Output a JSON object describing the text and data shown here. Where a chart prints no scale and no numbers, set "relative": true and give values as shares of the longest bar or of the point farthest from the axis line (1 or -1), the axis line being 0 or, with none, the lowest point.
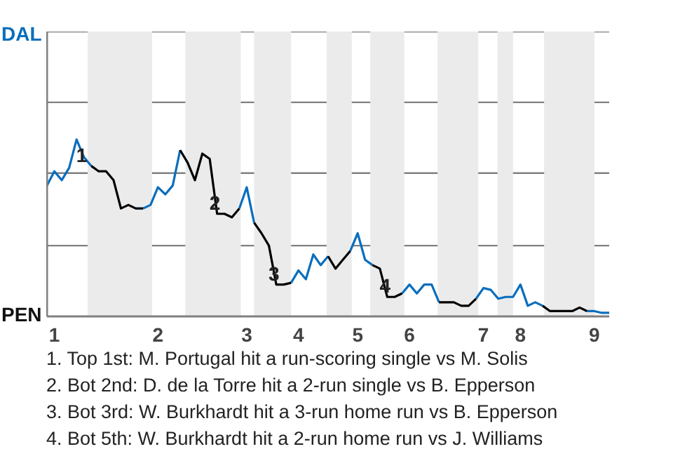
{
  "chart_data": {
    "type": "line",
    "categories": [
      null,
      "1",
      null,
      null,
      null,
      null,
      null,
      null,
      null,
      null,
      null,
      null,
      null,
      null,
      null,
      "2",
      null,
      null,
      null,
      null,
      null,
      null,
      null,
      null,
      null,
      null,
      null,
      "3",
      null,
      null,
      null,
      null,
      null,
      null,
      "4",
      null,
      null,
      null,
      null,
      null,
      null,
      null,
      "5",
      null,
      null,
      null,
      null,
      null,
      null,
      "6",
      null,
      null,
      null,
      null,
      null,
      null,
      null,
      null,
      null,
      "7",
      null,
      null,
      null,
      null,
      "8",
      null,
      null,
      null,
      null,
      null,
      null,
      null,
      null,
      null,
      "9",
      null,
      null
    ],
    "relative": true,
    "series": [
      {
        "color": "#0a6ebd",
        "values": [
          0.74,
          0.82,
          0.77,
          0.84,
          1,
          0.9,
          0.85,
          null,
          null,
          null,
          null,
          null,
          null,
          0.61,
          0.63,
          0.73,
          0.69,
          0.74,
          0.94,
          null,
          null,
          null,
          null,
          null,
          null,
          null,
          0.61,
          0.73,
          0.53,
          null,
          null,
          null,
          null,
          0.19,
          0.26,
          0.21,
          0.35,
          0.29,
          0.34,
          null,
          null,
          0.37,
          0.47,
          0.32,
          0.29,
          null,
          null,
          null,
          0.13,
          0.18,
          0.13,
          0.18,
          0.18,
          0.08,
          null,
          null,
          null,
          null,
          0.1,
          0.16,
          0.15,
          0.1,
          0.11,
          0.11,
          0.18,
          0.06,
          0.08,
          0.06,
          null,
          null,
          null,
          null,
          null,
          0.03,
          0.03,
          0.02,
          0.02
        ]
      },
      {
        "color": "#000000",
        "values": [
          null,
          null,
          null,
          null,
          null,
          null,
          0.85,
          0.82,
          0.82,
          0.77,
          0.61,
          0.63,
          0.61,
          0.61,
          null,
          null,
          null,
          null,
          0.94,
          0.87,
          0.77,
          0.92,
          0.89,
          0.58,
          0.58,
          0.56,
          0.61,
          null,
          0.53,
          0.47,
          0.4,
          0.18,
          0.18,
          0.19,
          null,
          null,
          null,
          null,
          0.34,
          0.27,
          0.32,
          0.37,
          null,
          null,
          0.29,
          0.27,
          0.11,
          0.11,
          0.13,
          null,
          null,
          null,
          null,
          0.08,
          0.08,
          0.08,
          0.06,
          0.06,
          0.1,
          null,
          null,
          null,
          null,
          null,
          null,
          null,
          null,
          0.06,
          0.03,
          0.03,
          0.03,
          0.03,
          0.05,
          0.03,
          null,
          null,
          null
        ]
      }
    ],
    "ref_lines": [
      {
        "axis": "y",
        "value": 0.4,
        "color": "#808080"
      },
      {
        "axis": "y",
        "value": 0.81,
        "color": "#808080"
      },
      {
        "axis": "y",
        "value": 1.21,
        "color": "#808080"
      },
      {
        "axis": "y",
        "value": 1.61,
        "color": "#808080"
      }
    ],
    "line_style": "solid",
    "annotations": [
      "DAL",
      "PEN",
      "1",
      "2",
      "3",
      "4",
      "1. Top 1st: M. Portugal hit a run-scoring single vs M. Solis",
      "2. Bot 2nd: D. de la Torre hit a 2-run single vs B. Epperson",
      "3. Bot 3rd: W. Burkhardt hit a 3-run home run vs B. Epperson",
      "4. Bot 5th: W. Burkhardt hit a 2-run home run vs J. Williams"
    ]
  }
}
